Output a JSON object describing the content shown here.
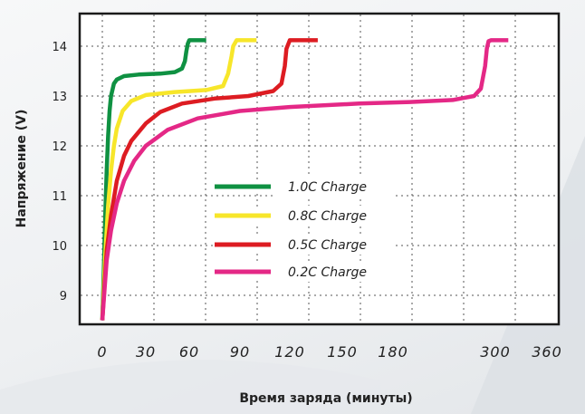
{
  "chart_data": {
    "type": "line",
    "title": "",
    "xlabel": "Время заряда (минуты)",
    "ylabel": "Напряжение (V)",
    "x_ticks": [
      0,
      30,
      60,
      90,
      120,
      150,
      180,
      300,
      360
    ],
    "x_tick_labels": [
      "0",
      "30",
      "60",
      "90",
      "120",
      "150",
      "180",
      "300",
      "360"
    ],
    "y_ticks": [
      9,
      10,
      11,
      12,
      13,
      14
    ],
    "y_tick_labels": [
      "9",
      "10",
      "11",
      "12",
      "13",
      "14"
    ],
    "ylim": [
      8.5,
      14.55
    ],
    "grid": true,
    "legend_position": "center",
    "series": [
      {
        "name": "1.0C Charge",
        "color": "#0f9142",
        "points": [
          [
            0,
            8.5
          ],
          [
            1,
            9.5
          ],
          [
            2,
            10.6
          ],
          [
            3,
            11.5
          ],
          [
            4,
            12.2
          ],
          [
            5,
            12.7
          ],
          [
            6,
            13.0
          ],
          [
            8,
            13.25
          ],
          [
            10,
            13.33
          ],
          [
            15,
            13.4
          ],
          [
            25,
            13.43
          ],
          [
            40,
            13.45
          ],
          [
            50,
            13.48
          ],
          [
            55,
            13.55
          ],
          [
            57,
            13.7
          ],
          [
            58,
            13.9
          ],
          [
            59,
            14.05
          ],
          [
            60,
            14.12
          ],
          [
            70,
            14.12
          ]
        ]
      },
      {
        "name": "0.8C Charge",
        "color": "#f7e62a",
        "points": [
          [
            0,
            8.5
          ],
          [
            2,
            9.8
          ],
          [
            4,
            10.8
          ],
          [
            6,
            11.5
          ],
          [
            8,
            12.0
          ],
          [
            10,
            12.35
          ],
          [
            14,
            12.7
          ],
          [
            20,
            12.9
          ],
          [
            30,
            13.02
          ],
          [
            50,
            13.08
          ],
          [
            70,
            13.12
          ],
          [
            80,
            13.2
          ],
          [
            83,
            13.45
          ],
          [
            85,
            13.8
          ],
          [
            86,
            14.0
          ],
          [
            88,
            14.12
          ],
          [
            100,
            14.12
          ]
        ]
      },
      {
        "name": "0.5C Charge",
        "color": "#dd1c22",
        "points": [
          [
            0,
            8.5
          ],
          [
            3,
            9.9
          ],
          [
            6,
            10.6
          ],
          [
            10,
            11.3
          ],
          [
            15,
            11.8
          ],
          [
            20,
            12.1
          ],
          [
            30,
            12.45
          ],
          [
            40,
            12.68
          ],
          [
            55,
            12.85
          ],
          [
            75,
            12.95
          ],
          [
            95,
            13.0
          ],
          [
            110,
            13.1
          ],
          [
            115,
            13.25
          ],
          [
            117,
            13.6
          ],
          [
            118,
            13.95
          ],
          [
            120,
            14.12
          ],
          [
            136,
            14.12
          ]
        ]
      },
      {
        "name": "0.2C Charge",
        "color": "#e42886",
        "points": [
          [
            0,
            8.5
          ],
          [
            3,
            9.7
          ],
          [
            6,
            10.3
          ],
          [
            10,
            10.85
          ],
          [
            15,
            11.3
          ],
          [
            22,
            11.7
          ],
          [
            30,
            12.0
          ],
          [
            45,
            12.32
          ],
          [
            65,
            12.55
          ],
          [
            90,
            12.7
          ],
          [
            120,
            12.78
          ],
          [
            160,
            12.85
          ],
          [
            200,
            12.88
          ],
          [
            250,
            12.92
          ],
          [
            275,
            13.0
          ],
          [
            283,
            13.15
          ],
          [
            288,
            13.6
          ],
          [
            290,
            13.95
          ],
          [
            292,
            14.1
          ],
          [
            295,
            14.12
          ],
          [
            315,
            14.12
          ]
        ]
      }
    ]
  }
}
